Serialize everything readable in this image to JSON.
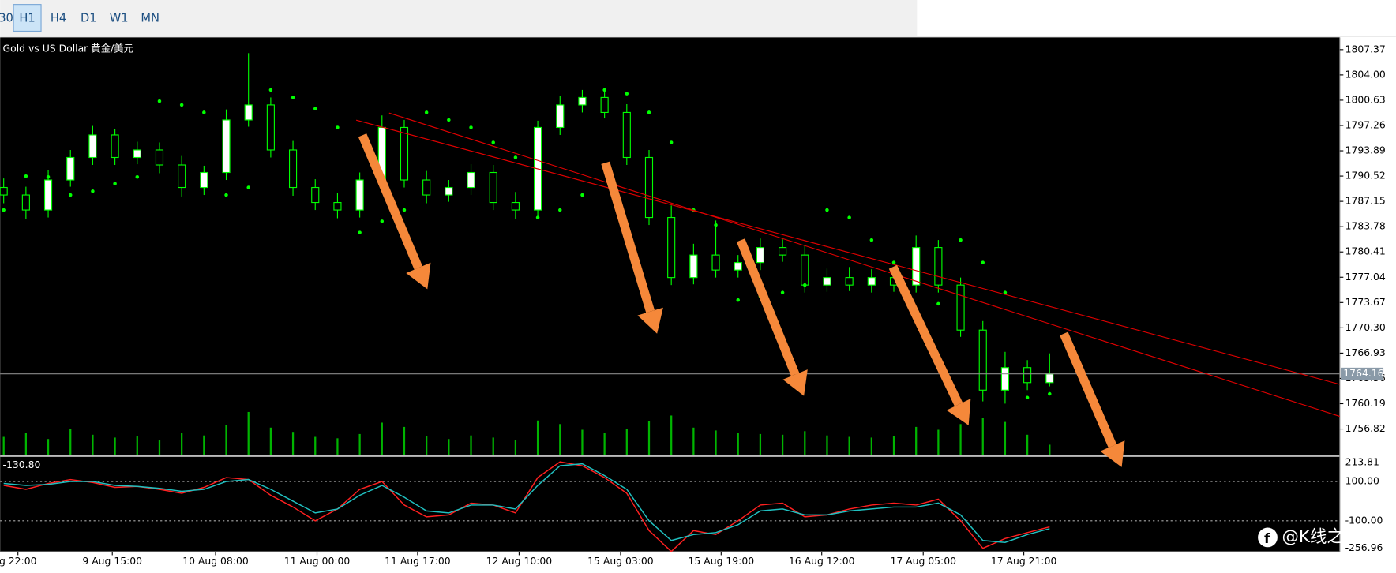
{
  "toolbar": {
    "timeframes": [
      "30",
      "H1",
      "H4",
      "D1",
      "W1",
      "MN"
    ],
    "active": "H1"
  },
  "chart_data": {
    "type": "candlestick",
    "title": "Gold vs US Dollar 黄金/美元",
    "time_labels": [
      "g 22:00",
      "9 Aug 15:00",
      "10 Aug 08:00",
      "11 Aug 00:00",
      "11 Aug 17:00",
      "12 Aug 10:00",
      "15 Aug 03:00",
      "15 Aug 19:00",
      "16 Aug 12:00",
      "17 Aug 05:00",
      "17 Aug 21:00"
    ],
    "ylim": [
      1753.4,
      1809.0
    ],
    "yticks": [
      1807.37,
      {
        "value": 1804.0,
        "label": "1804.00"
      },
      1800.63,
      1797.26,
      1793.89,
      1790.52,
      1787.15,
      1783.78,
      1780.41,
      1777.04,
      1773.67,
      {
        "value": 1770.3,
        "label": "1770.30"
      },
      1766.93,
      1763.56,
      1760.19,
      1756.82
    ],
    "current_price": 1764.16,
    "open": [
      1789,
      1788,
      1786,
      1790,
      1793,
      1796,
      1793,
      1794,
      1792,
      1789,
      1791,
      1798,
      1800,
      1794,
      1789,
      1787,
      1786,
      1790,
      1797,
      1790,
      1788,
      1789,
      1791,
      1787,
      1786,
      1797,
      1800,
      1801,
      1799,
      1793,
      1785,
      1777,
      1780,
      1778,
      1779,
      1781,
      1780,
      1776,
      1777,
      1776,
      1777,
      1776,
      1781,
      1776,
      1770,
      1762,
      1765,
      1763
    ],
    "high": [
      1790.2,
      1789.1,
      1791.3,
      1794.0,
      1797.2,
      1796.8,
      1795.1,
      1795.0,
      1793.2,
      1791.9,
      1799.4,
      1806.9,
      1801.0,
      1795.2,
      1790.1,
      1788.3,
      1791.0,
      1798.6,
      1798.0,
      1791.2,
      1790.0,
      1792.1,
      1792.0,
      1788.4,
      1797.9,
      1801.2,
      1802.0,
      1801.8,
      1800.1,
      1794.0,
      1786.6,
      1781.5,
      1784.6,
      1780.0,
      1782.2,
      1782.1,
      1781.3,
      1778.2,
      1778.4,
      1778.1,
      1777.9,
      1782.6,
      1782.0,
      1777.0,
      1771.2,
      1767.1,
      1766.0,
      1766.9
    ],
    "low": [
      1786.9,
      1784.8,
      1785.0,
      1789.1,
      1792.0,
      1792.0,
      1792.1,
      1790.9,
      1787.8,
      1788.0,
      1790.0,
      1797.1,
      1793.0,
      1787.9,
      1786.0,
      1784.9,
      1785.0,
      1789.1,
      1789.0,
      1786.9,
      1787.1,
      1788.0,
      1786.0,
      1784.8,
      1785.1,
      1796.0,
      1799.0,
      1798.2,
      1792.0,
      1784.0,
      1776.0,
      1776.1,
      1777.0,
      1777.0,
      1778.0,
      1779.1,
      1775.0,
      1775.1,
      1775.2,
      1775.0,
      1775.1,
      1775.0,
      1775.0,
      1769.1,
      1760.5,
      1760.2,
      1762.0,
      1762.5
    ],
    "close": [
      1788,
      1786,
      1790,
      1793,
      1796,
      1793,
      1794,
      1792,
      1789,
      1791,
      1798,
      1800,
      1794,
      1789,
      1787,
      1786,
      1790,
      1797,
      1790,
      1788,
      1789,
      1791,
      1787,
      1786,
      1797,
      1800,
      1801,
      1799,
      1793,
      1785,
      1777,
      1780,
      1778,
      1779,
      1781,
      1780,
      1776,
      1777,
      1776,
      1777,
      1776,
      1781,
      1776,
      1770,
      1762,
      1765,
      1763,
      1764.16
    ],
    "volume": [
      2500,
      3100,
      2200,
      3600,
      2800,
      2400,
      2600,
      2000,
      3000,
      2700,
      4200,
      6000,
      3800,
      3200,
      2500,
      2300,
      2900,
      4500,
      3900,
      2600,
      2200,
      2700,
      2400,
      2100,
      4800,
      4300,
      3500,
      3000,
      3600,
      4700,
      5500,
      3800,
      3400,
      3100,
      2900,
      2800,
      3300,
      2700,
      2500,
      2400,
      2600,
      3900,
      3500,
      4300,
      5200,
      4600,
      2800,
      1400
    ],
    "sar": [
      1786,
      1790.5,
      1790.4,
      1788,
      1788.5,
      1789.5,
      1790.4,
      1800.5,
      1800,
      1799,
      1788,
      1789,
      1802,
      1801,
      1799.5,
      1797,
      1783,
      1784.5,
      1786,
      1799,
      1798,
      1797,
      1795,
      1793,
      1785,
      1786,
      1788,
      1802,
      1801.5,
      1799,
      1795,
      1786,
      1784,
      1774,
      1774.5,
      1775,
      1776,
      1786,
      1785,
      1782,
      1779,
      1772,
      1773.5,
      1782,
      1779,
      1775,
      1761,
      1761.5
    ],
    "candle_bull_color": "#ffffff",
    "candle_bear_color": "#000000",
    "wick_color": "#00ff00",
    "sar_color": "#00ff00",
    "volume_color": "#00b400",
    "indicator": {
      "current_value_label": "-130.80",
      "ylim": [
        -256.96,
        213.81
      ],
      "yticks": [
        213.81,
        {
          "value": 100,
          "label": "100.00"
        },
        {
          "value": -100,
          "label": "-100.00"
        },
        -256.96
      ],
      "series": [
        {
          "color": "#ff2020",
          "values": [
            80,
            60,
            90,
            110,
            95,
            70,
            75,
            60,
            40,
            70,
            120,
            110,
            30,
            -30,
            -100,
            -40,
            60,
            100,
            -20,
            -80,
            -70,
            -10,
            -20,
            -60,
            120,
            200,
            180,
            120,
            40,
            -150,
            -256,
            -150,
            -170,
            -100,
            -20,
            -10,
            -80,
            -70,
            -40,
            -20,
            -10,
            -20,
            10,
            -100,
            -240,
            -190,
            -160,
            -130.8
          ]
        },
        {
          "color": "#20c0c0",
          "values": [
            90,
            80,
            85,
            100,
            100,
            80,
            75,
            65,
            50,
            60,
            100,
            110,
            60,
            0,
            -60,
            -40,
            30,
            80,
            20,
            -50,
            -60,
            -20,
            -20,
            -40,
            80,
            180,
            190,
            130,
            60,
            -100,
            -200,
            -170,
            -160,
            -120,
            -50,
            -40,
            -70,
            -70,
            -50,
            -40,
            -30,
            -30,
            -10,
            -70,
            -200,
            -210,
            -170,
            -140
          ]
        }
      ]
    }
  },
  "watermark": "@K线之巅"
}
